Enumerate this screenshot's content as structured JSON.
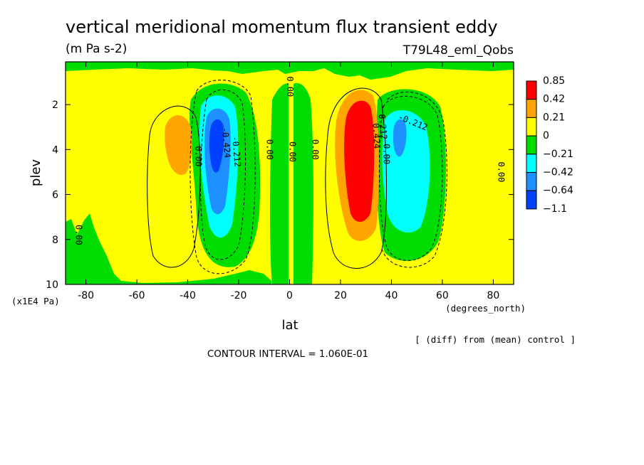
{
  "chart_data": {
    "type": "heatmap",
    "title": "vertical meridional momentum flux transient eddy",
    "subtitle": "(m Pa s-2)",
    "experiment": "T79L48_eml_Qobs",
    "xlabel": "lat",
    "x_units": "(degrees_north)",
    "ylabel": "plev",
    "y_units": "(x1E4 Pa)",
    "xlim": [
      -88,
      88
    ],
    "ylim": [
      10,
      0.1
    ],
    "x_ticks": [
      -80,
      -60,
      -40,
      -20,
      0,
      20,
      40,
      60,
      80
    ],
    "y_ticks": [
      2,
      4,
      6,
      8,
      10
    ],
    "colorbar": {
      "labels": [
        "0.85",
        "0.42",
        "0.21",
        "0",
        "−0.21",
        "−0.42",
        "−0.64",
        "−1.1"
      ],
      "colors": [
        "#ff0000",
        "#ffa500",
        "#ffff00",
        "#00dd00",
        "#00ffff",
        "#1e90ff",
        "#0040ff"
      ]
    },
    "contour_labels": [
      {
        "text": "0.00",
        "lat": -37,
        "p": 4.3,
        "rot": 90
      },
      {
        "text": "-0.212",
        "lat": -22,
        "p": 4.1,
        "rot": 85
      },
      {
        "text": "-0.424",
        "lat": -26,
        "p": 3.7,
        "rot": 85
      },
      {
        "text": "0.00",
        "lat": -9,
        "p": 4.0,
        "rot": 90
      },
      {
        "text": "0.00",
        "lat": 0,
        "p": 4.1,
        "rot": 90
      },
      {
        "text": "0.00",
        "lat": 9,
        "p": 4.0,
        "rot": 90
      },
      {
        "text": "0.00",
        "lat": -1,
        "p": 1.2,
        "rot": 90
      },
      {
        "text": "0.424",
        "lat": 33,
        "p": 3.4,
        "rot": 88
      },
      {
        "text": "0.212",
        "lat": 35.5,
        "p": 3.0,
        "rot": 85
      },
      {
        "text": "0.00",
        "lat": 37,
        "p": 4.2,
        "rot": 90
      },
      {
        "text": "-0.212",
        "lat": 48,
        "p": 2.9,
        "rot": 22
      },
      {
        "text": "0.00",
        "lat": 82,
        "p": 5.0,
        "rot": 90
      },
      {
        "text": "0.00",
        "lat": -84,
        "p": 7.8,
        "rot": 90
      }
    ],
    "features": [
      {
        "name": "NH jet positive maximum",
        "lat": 28,
        "p": 4.2,
        "value": 0.85
      },
      {
        "name": "SH negative minimum",
        "lat": -29,
        "p": 3.8,
        "value": -0.64
      },
      {
        "name": "NH negative lobe",
        "lat": 47,
        "p": 4.3,
        "value": -0.42
      },
      {
        "name": "SH positive lobe",
        "lat": -45,
        "p": 3.7,
        "value": 0.21
      }
    ],
    "contour_interval": "CONTOUR INTERVAL = 1.060E-01",
    "footnote": "[ (diff) from (mean) control ]"
  }
}
